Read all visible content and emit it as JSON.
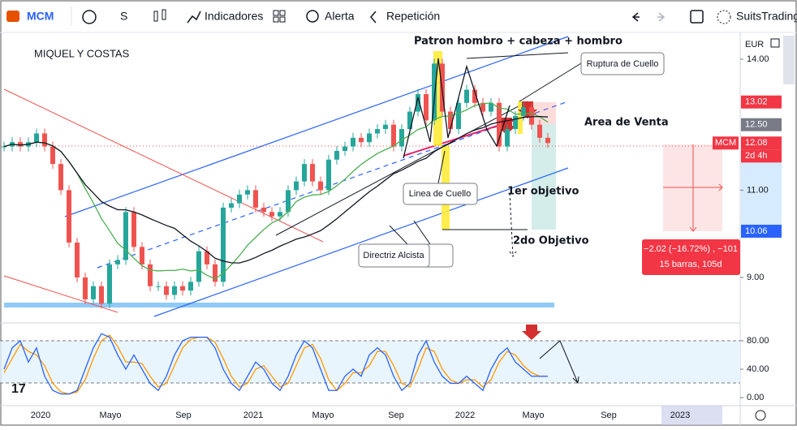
{
  "toolbar": {
    "symbol": "MCM",
    "interval": "S",
    "indicators": "Indicadores",
    "alert": "Alerta",
    "replay": "Repetición",
    "user": "SuitsTrading"
  },
  "chart": {
    "title": "MIQUEL Y COSTAS",
    "currency": "EUR",
    "symbol_tag": "MCM",
    "countdown": "2d 4h",
    "price": {
      "ylim": [
        8.015,
        14.613
      ],
      "ticks": [
        {
          "value": 14,
          "label": "14.00"
        },
        {
          "value": 11,
          "label": "11.00"
        },
        {
          "value": 9,
          "label": "9.00"
        }
      ],
      "closes": [
        12.0,
        12.1,
        12.0,
        12.1,
        12.3,
        12.0,
        11.6,
        11.0,
        9.8,
        9.0,
        8.5,
        8.8,
        8.4,
        9.3,
        9.4,
        10.5,
        9.7,
        9.3,
        8.8,
        8.8,
        8.6,
        8.8,
        8.7,
        8.9,
        9.6,
        9.3,
        8.9,
        10.6,
        10.7,
        10.9,
        11.0,
        10.6,
        10.5,
        10.4,
        10.5,
        11.0,
        11.2,
        11.6,
        11.2,
        11.0,
        11.7,
        11.9,
        12.0,
        12.2,
        12.1,
        12.3,
        12.4,
        12.5,
        12.0,
        12.4,
        12.8,
        13.2,
        12.6,
        13.9,
        12.8,
        12.4,
        13.0,
        13.3,
        13.0,
        12.8,
        13.0,
        12.0,
        12.4,
        12.7,
        12.9,
        12.5,
        12.2,
        12.08
      ]
    },
    "price_labels": [
      {
        "value": 13.02,
        "label": "13.02",
        "color": "#f23645"
      },
      {
        "value": 12.5,
        "label": "12.50",
        "color": "#787b86"
      },
      {
        "value": 12.08,
        "label": "12.08",
        "color": "#f23645"
      },
      {
        "value": 10.06,
        "label": "10.06",
        "color": "#2962ff"
      }
    ],
    "stochastic": {
      "ylim": [
        -11.4,
        102.9
      ],
      "ticks": [
        {
          "value": 80,
          "label": "80.00"
        },
        {
          "value": 40,
          "label": "40.00"
        },
        {
          "value": 0,
          "label": "0.00"
        }
      ],
      "k": [
        40,
        70,
        80,
        50,
        70,
        30,
        10,
        5,
        5,
        10,
        40,
        70,
        90,
        85,
        60,
        40,
        60,
        40,
        20,
        10,
        30,
        60,
        80,
        85,
        85,
        85,
        70,
        40,
        20,
        10,
        30,
        50,
        40,
        20,
        10,
        30,
        60,
        80,
        70,
        40,
        10,
        10,
        30,
        40,
        30,
        60,
        70,
        60,
        30,
        10,
        20,
        60,
        80,
        50,
        30,
        20,
        20,
        30,
        20,
        10,
        40,
        60,
        70,
        50,
        40,
        30,
        30,
        30
      ],
      "d": [
        35,
        55,
        75,
        65,
        60,
        45,
        20,
        8,
        5,
        8,
        25,
        55,
        80,
        88,
        72,
        50,
        50,
        48,
        30,
        15,
        20,
        45,
        70,
        82,
        85,
        85,
        78,
        55,
        30,
        15,
        20,
        40,
        45,
        30,
        15,
        20,
        45,
        70,
        75,
        55,
        25,
        10,
        20,
        35,
        35,
        45,
        65,
        65,
        45,
        20,
        15,
        40,
        70,
        65,
        40,
        25,
        20,
        25,
        25,
        15,
        25,
        50,
        65,
        60,
        45,
        35,
        30,
        30
      ]
    },
    "x_labels": [
      "2020",
      "Mayo",
      "Sep",
      "2021",
      "Mayo",
      "Sep",
      "2022",
      "Mayo",
      "Sep",
      "2023"
    ],
    "annotations": {
      "pattern": "Patron hombro + cabeza + hombro",
      "break": "Ruptura de Cuello",
      "sell_area": "Area de Venta",
      "neckline": "Linea de Cuello",
      "target1": "1er objetivo",
      "target2": "2do Objetivo",
      "trend": "Directriz Alcista"
    },
    "measure": {
      "line1": "−2.02 (−16.72%) , −101",
      "line2": "15 barras, 105d"
    }
  }
}
